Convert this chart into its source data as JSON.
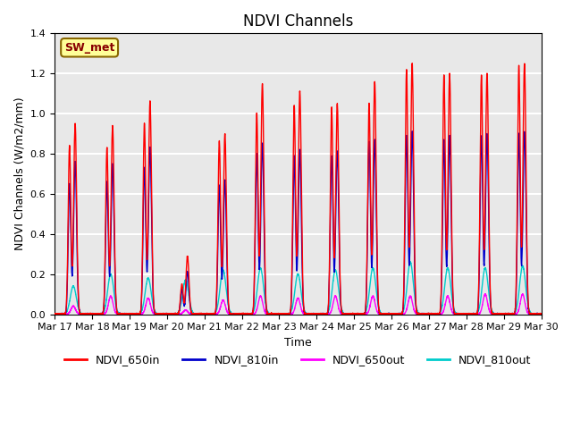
{
  "title": "NDVI Channels",
  "xlabel": "Time",
  "ylabel": "NDVI Channels (W/m2/mm)",
  "ylim": [
    0,
    1.4
  ],
  "xlim": [
    0,
    13
  ],
  "annotation_text": "SW_met",
  "annotation_bg": "#ffff99",
  "annotation_border": "#886600",
  "annotation_text_color": "#880000",
  "grid_color": "white",
  "bg_color": "#e8e8e8",
  "series": {
    "NDVI_650in": {
      "color": "#ff0000",
      "lw": 1.0
    },
    "NDVI_810in": {
      "color": "#0000cc",
      "lw": 1.0
    },
    "NDVI_650out": {
      "color": "#ff00ff",
      "lw": 1.0
    },
    "NDVI_810out": {
      "color": "#00cccc",
      "lw": 1.0
    }
  },
  "xtick_labels": [
    "Mar 17",
    "Mar 18",
    "Mar 19",
    "Mar 20",
    "Mar 21",
    "Mar 22",
    "Mar 23",
    "Mar 24",
    "Mar 25",
    "Mar 26",
    "Mar 27",
    "Mar 28",
    "Mar 29",
    "Mar 30"
  ],
  "xtick_positions": [
    0,
    1,
    2,
    3,
    4,
    5,
    6,
    7,
    8,
    9,
    10,
    11,
    12,
    13
  ],
  "peaks_650in": [
    0.95,
    0.94,
    1.06,
    0.29,
    0.9,
    1.15,
    1.11,
    1.05,
    1.16,
    1.25,
    1.2,
    1.2,
    1.25,
    0.05
  ],
  "peaks2_650in": [
    0.84,
    0.83,
    0.95,
    0.15,
    0.86,
    1.0,
    1.04,
    1.03,
    1.05,
    1.22,
    1.19,
    1.19,
    1.24,
    0.0
  ],
  "peaks_810in": [
    0.76,
    0.75,
    0.83,
    0.21,
    0.67,
    0.85,
    0.82,
    0.81,
    0.87,
    0.91,
    0.89,
    0.9,
    0.91,
    0.0
  ],
  "peaks2_810in": [
    0.65,
    0.66,
    0.73,
    0.12,
    0.64,
    0.8,
    0.79,
    0.79,
    0.86,
    0.89,
    0.87,
    0.89,
    0.9,
    0.0
  ],
  "peaks_650out": [
    0.04,
    0.09,
    0.08,
    0.02,
    0.07,
    0.09,
    0.08,
    0.09,
    0.09,
    0.09,
    0.09,
    0.1,
    0.1,
    0.0
  ],
  "peaks_810out": [
    0.14,
    0.2,
    0.18,
    0.17,
    0.22,
    0.23,
    0.2,
    0.22,
    0.23,
    0.26,
    0.23,
    0.23,
    0.24,
    0.0
  ]
}
